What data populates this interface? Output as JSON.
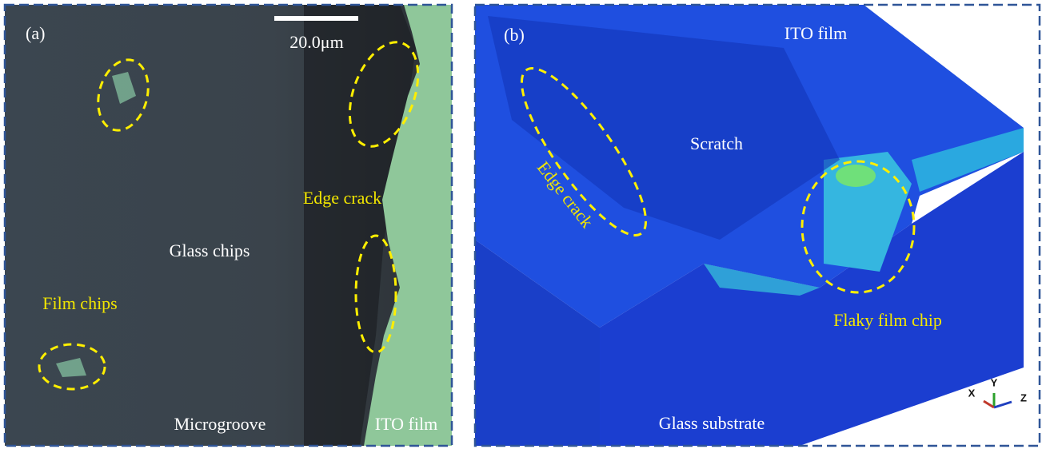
{
  "panels": [
    {
      "label": "(a)",
      "scale_bar": "20.0μm",
      "annotations": [
        "Edge crack",
        "Glass chips",
        "Film chips",
        "Microgroove",
        "ITO film"
      ]
    },
    {
      "label": "(b)",
      "annotations": [
        "ITO film",
        "Scratch",
        "Edge crack",
        "Flaky film chip",
        "Glass substrate"
      ],
      "axes": [
        "X",
        "Y",
        "Z"
      ]
    }
  ]
}
